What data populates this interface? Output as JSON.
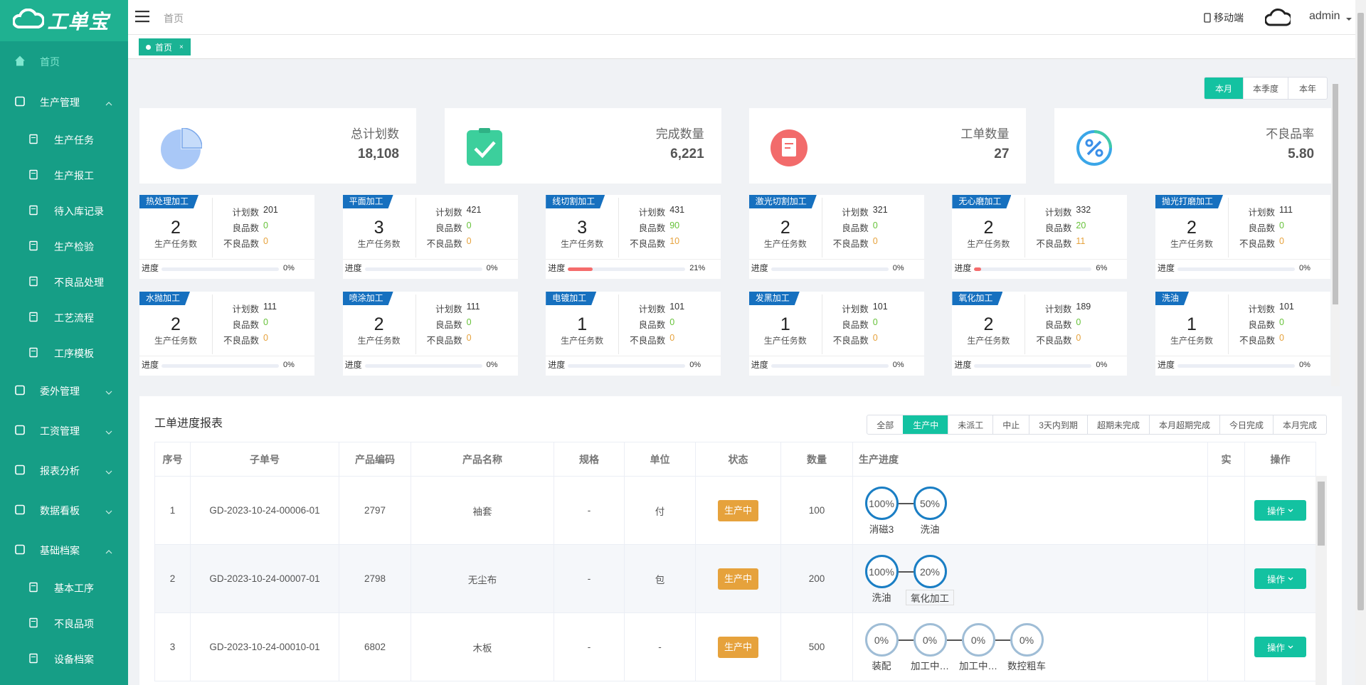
{
  "sidebar": {
    "logo": "工单宝",
    "menu": [
      {
        "label": "首页"
      },
      {
        "label": "生产管理",
        "children": [
          "生产任务",
          "生产报工",
          "待入库记录",
          "生产检验",
          "不良品处理",
          "工艺流程",
          "工序模板"
        ]
      },
      {
        "label": "委外管理"
      },
      {
        "label": "工资管理"
      },
      {
        "label": "报表分析"
      },
      {
        "label": "数据看板"
      },
      {
        "label": "基础档案",
        "children": [
          "基本工序",
          "不良品项",
          "设备档案"
        ]
      }
    ]
  },
  "header": {
    "breadcrumb": "首页",
    "mobile": "移动端",
    "user": "admin"
  },
  "tabs": [
    {
      "label": "首页",
      "close": "×"
    }
  ],
  "period_filter": [
    "本月",
    "本季度",
    "本年"
  ],
  "stats": [
    {
      "label": "总计划数",
      "value": "18,108"
    },
    {
      "label": "完成数量",
      "value": "6,221"
    },
    {
      "label": "工单数量",
      "value": "27"
    },
    {
      "label": "不良品率",
      "value": "5.80"
    }
  ],
  "card_labels": {
    "tasks": "生产任务数",
    "plan": "计划数",
    "good": "良品数",
    "bad": "不良品数",
    "progress": "进度"
  },
  "process_cards": [
    {
      "name": "热处理加工",
      "tasks": 2,
      "plan": 201,
      "good": 0,
      "bad": 0,
      "progress": 0,
      "progress_label": "0%"
    },
    {
      "name": "平面加工",
      "tasks": 3,
      "plan": 421,
      "good": 0,
      "bad": 0,
      "progress": 0,
      "progress_label": "0%"
    },
    {
      "name": "线切割加工",
      "tasks": 3,
      "plan": 431,
      "good": 90,
      "bad": 10,
      "progress": 21,
      "progress_label": "21%"
    },
    {
      "name": "激光切割加工",
      "tasks": 2,
      "plan": 321,
      "good": 0,
      "bad": 0,
      "progress": 0,
      "progress_label": "0%"
    },
    {
      "name": "无心磨加工",
      "tasks": 2,
      "plan": 332,
      "good": 20,
      "bad": 11,
      "progress": 6,
      "progress_label": "6%"
    },
    {
      "name": "抛光打磨加工",
      "tasks": 2,
      "plan": 111,
      "good": 0,
      "bad": 0,
      "progress": 0,
      "progress_label": "0%"
    },
    {
      "name": "水抛加工",
      "tasks": 2,
      "plan": 111,
      "good": 0,
      "bad": 0,
      "progress": 0,
      "progress_label": "0%"
    },
    {
      "name": "喷涂加工",
      "tasks": 2,
      "plan": 111,
      "good": 0,
      "bad": 0,
      "progress": 0,
      "progress_label": "0%"
    },
    {
      "name": "电镀加工",
      "tasks": 1,
      "plan": 101,
      "good": 0,
      "bad": 0,
      "progress": 0,
      "progress_label": "0%"
    },
    {
      "name": "发黑加工",
      "tasks": 1,
      "plan": 101,
      "good": 0,
      "bad": 0,
      "progress": 0,
      "progress_label": "0%"
    },
    {
      "name": "氧化加工",
      "tasks": 2,
      "plan": 189,
      "good": 0,
      "bad": 0,
      "progress": 0,
      "progress_label": "0%"
    },
    {
      "name": "洗油",
      "tasks": 1,
      "plan": 101,
      "good": 0,
      "bad": 0,
      "progress": 0,
      "progress_label": "0%"
    }
  ],
  "report": {
    "title": "工单进度报表",
    "filters": [
      "全部",
      "生产中",
      "未派工",
      "中止",
      "3天内到期",
      "超期未完成",
      "本月超期完成",
      "今日完成",
      "本月完成"
    ],
    "columns": [
      "序号",
      "子单号",
      "产品编码",
      "产品名称",
      "规格",
      "单位",
      "状态",
      "数量",
      "生产进度",
      "实",
      "操作"
    ],
    "rows": [
      {
        "no": 1,
        "code": "GD-2023-10-24-00006-01",
        "product_code": 2797,
        "product": "袖套",
        "spec": "-",
        "unit": "付",
        "status": "生产中",
        "qty": 100,
        "steps": [
          {
            "value": 100,
            "label": "100%",
            "name": "消磁3"
          },
          {
            "value": 50,
            "label": "50%",
            "name": "洗油"
          }
        ],
        "action": "操作"
      },
      {
        "no": 2,
        "code": "GD-2023-10-24-00007-01",
        "product_code": 2798,
        "product": "无尘布",
        "spec": "-",
        "unit": "包",
        "status": "生产中",
        "qty": 200,
        "steps": [
          {
            "value": 100,
            "label": "100%",
            "name": "洗油"
          },
          {
            "value": 20,
            "label": "20%",
            "name": "氧化加工"
          }
        ],
        "action": "操作"
      },
      {
        "no": 3,
        "code": "GD-2023-10-24-00010-01",
        "product_code": 6802,
        "product": "木板",
        "spec": "-",
        "unit": "-",
        "status": "生产中",
        "qty": 500,
        "steps": [
          {
            "value": 0,
            "label": "0%",
            "name": "装配"
          },
          {
            "value": 0,
            "label": "0%",
            "name": "加工中…"
          },
          {
            "value": 0,
            "label": "0%",
            "name": "加工中…"
          },
          {
            "value": 0,
            "label": "0%",
            "name": "数控粗车"
          }
        ],
        "action": "操作"
      }
    ]
  }
}
